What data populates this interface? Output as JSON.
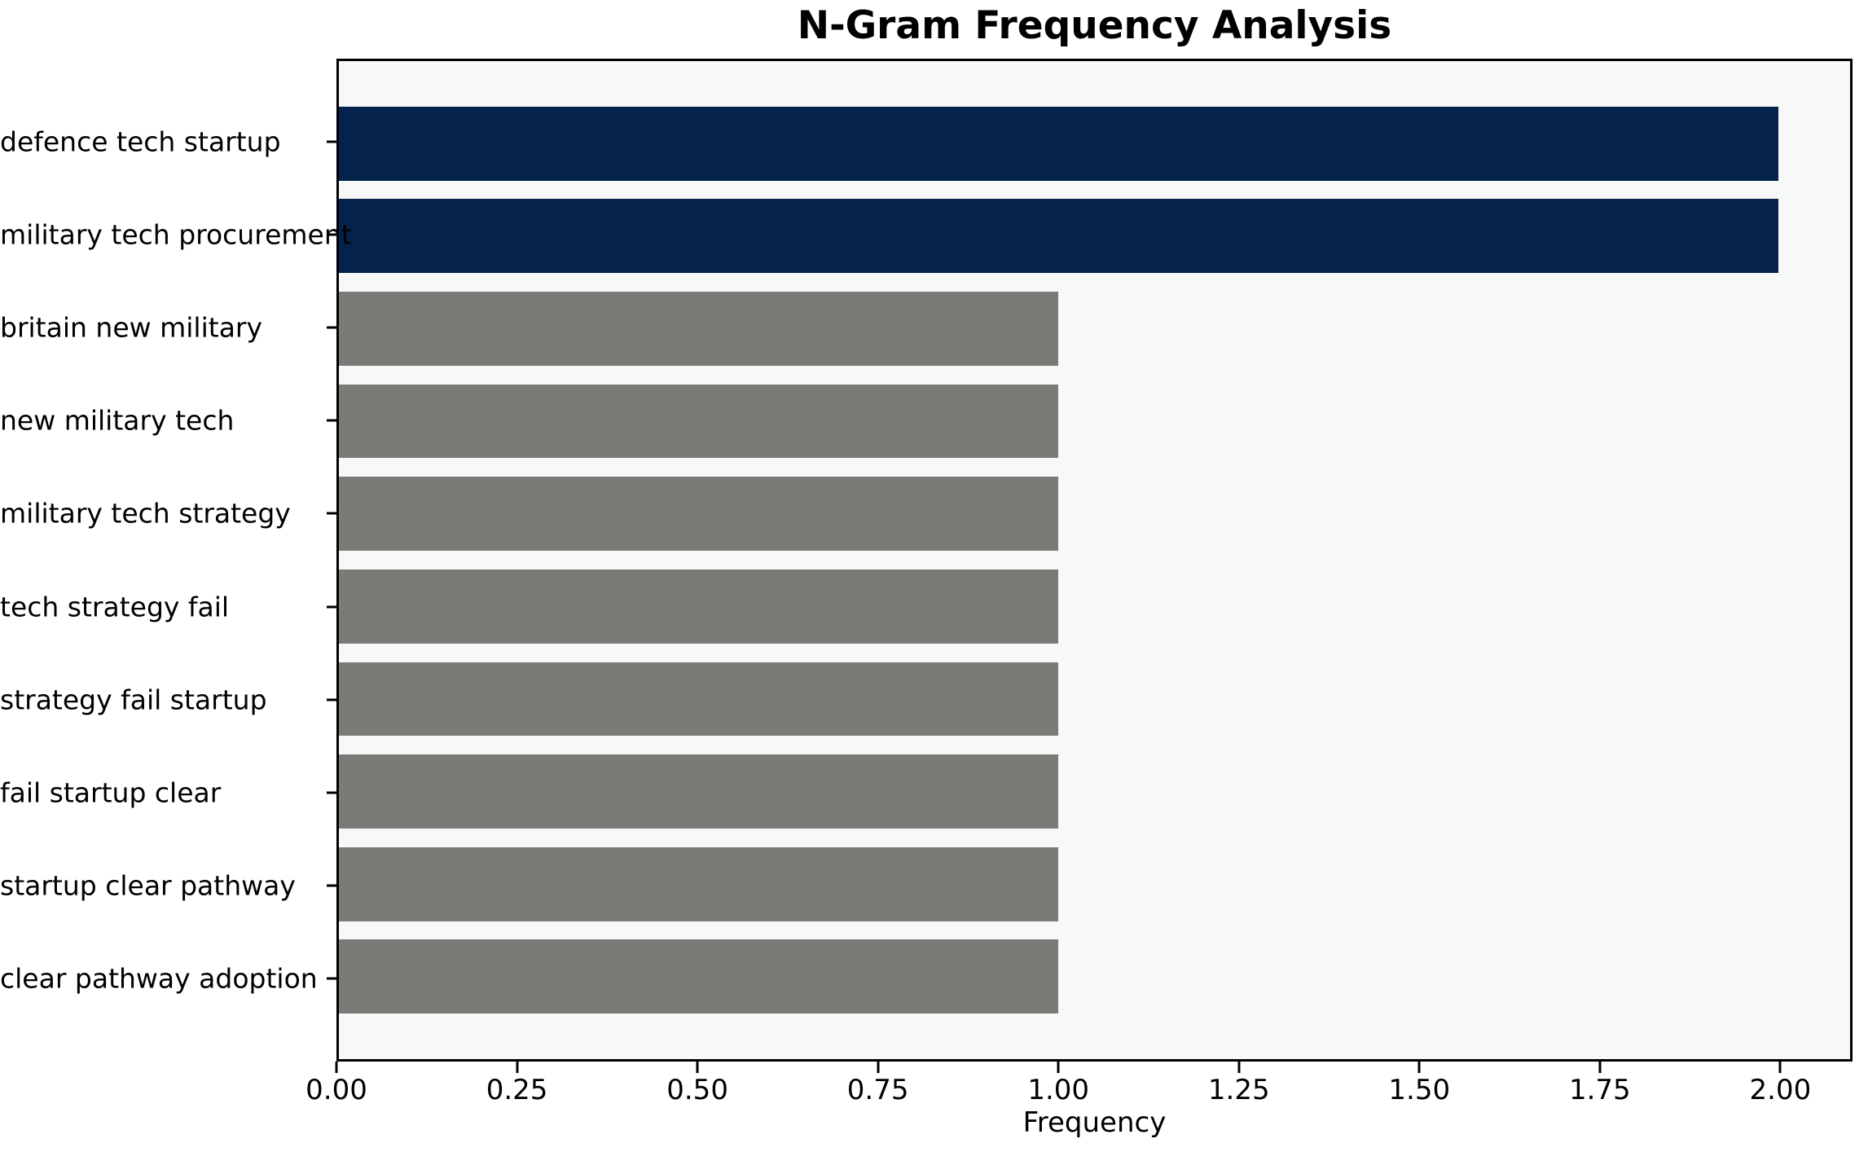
{
  "chart_data": {
    "type": "bar",
    "orientation": "horizontal",
    "title": "N-Gram Frequency Analysis",
    "xlabel": "Frequency",
    "ylabel": "",
    "categories": [
      "defence tech startup",
      "military tech procurement",
      "britain new military",
      "new military tech",
      "military tech strategy",
      "tech strategy fail",
      "strategy fail startup",
      "fail startup clear",
      "startup clear pathway",
      "clear pathway adoption"
    ],
    "values": [
      2,
      2,
      1,
      1,
      1,
      1,
      1,
      1,
      1,
      1
    ],
    "bar_colors": [
      "#04224c",
      "#04224c",
      "#7b7a77",
      "#7b7a77",
      "#7b7a77",
      "#7b7a77",
      "#7b7a77",
      "#7b7a77",
      "#7b7a77",
      "#7b7a77"
    ],
    "xlim": [
      0,
      2.1
    ],
    "xticks": [
      0.0,
      0.25,
      0.5,
      0.75,
      1.0,
      1.25,
      1.5,
      1.75,
      2.0
    ],
    "xtick_labels": [
      "0.00",
      "0.25",
      "0.50",
      "0.75",
      "1.00",
      "1.25",
      "1.50",
      "1.75",
      "2.00"
    ],
    "grid": false,
    "legend_position": "none",
    "colors": {
      "highlight_bar": "#04224c",
      "default_bar": "#7b7a77",
      "plot_background": "#f7f8f8",
      "axis": "#000000",
      "text": "#000000"
    }
  }
}
